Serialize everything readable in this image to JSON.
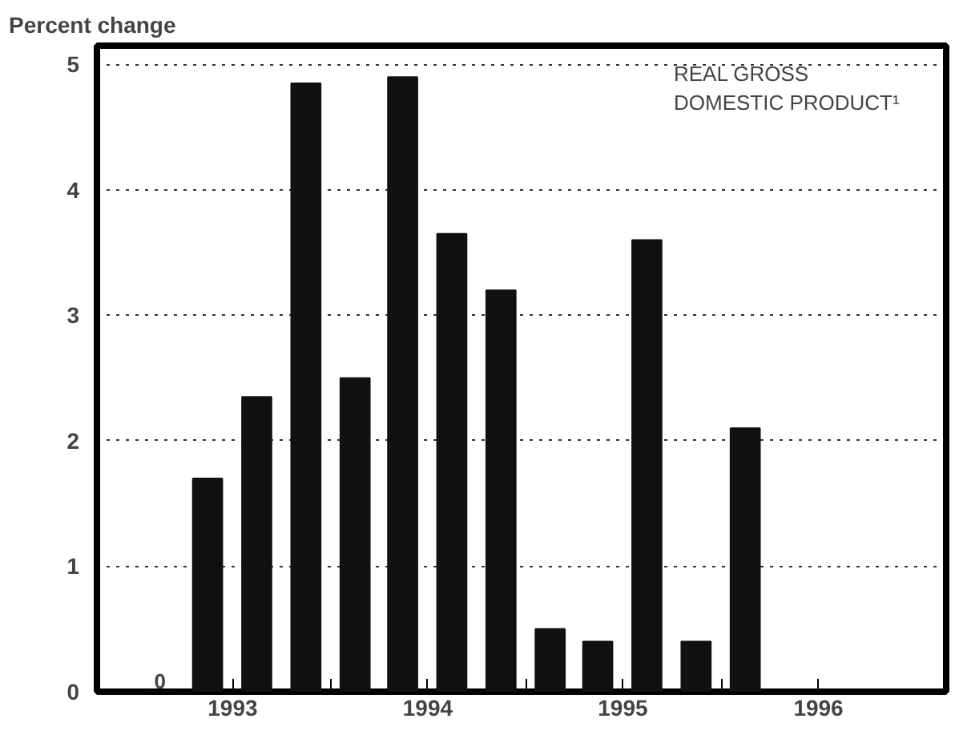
{
  "chart_data": {
    "type": "bar",
    "title": "REAL GROSS\nDOMESTIC PRODUCT¹",
    "ylabel": "Percent change",
    "x": [
      "1993-02-15",
      "1993-05-15",
      "1993-08-15",
      "1993-11-15",
      "1994-02-15",
      "1994-05-15",
      "1994-08-15",
      "1994-11-15",
      "1995-02-15",
      "1995-05-15",
      "1995-08-15",
      "1995-11-15",
      "1996-02-15"
    ],
    "values": [
      0,
      1.7,
      2.35,
      4.85,
      2.5,
      4.9,
      3.65,
      3.2,
      0.5,
      0.4,
      3.6,
      0.4,
      2.1
    ],
    "value_labels": [
      "0",
      null,
      null,
      null,
      null,
      null,
      null,
      null,
      null,
      null,
      null,
      null,
      null
    ],
    "color": "#111111",
    "xlim": [
      "1992-10-20",
      "1997-02-25"
    ],
    "xticks": [
      {
        "value": "1993-07-01",
        "label": "1993"
      },
      {
        "value": "1994-01-01",
        "label": null
      },
      {
        "value": "1994-07-01",
        "label": "1994"
      },
      {
        "value": "1995-01-01",
        "label": null
      },
      {
        "value": "1995-07-01",
        "label": "1995"
      },
      {
        "value": "1996-01-01",
        "label": null
      },
      {
        "value": "1996-07-01",
        "label": "1996"
      }
    ],
    "ylim": [
      0,
      5.15
    ],
    "yticks": [
      0,
      1,
      2,
      3,
      4,
      5
    ],
    "grid": "y",
    "line_style": "dotted"
  }
}
